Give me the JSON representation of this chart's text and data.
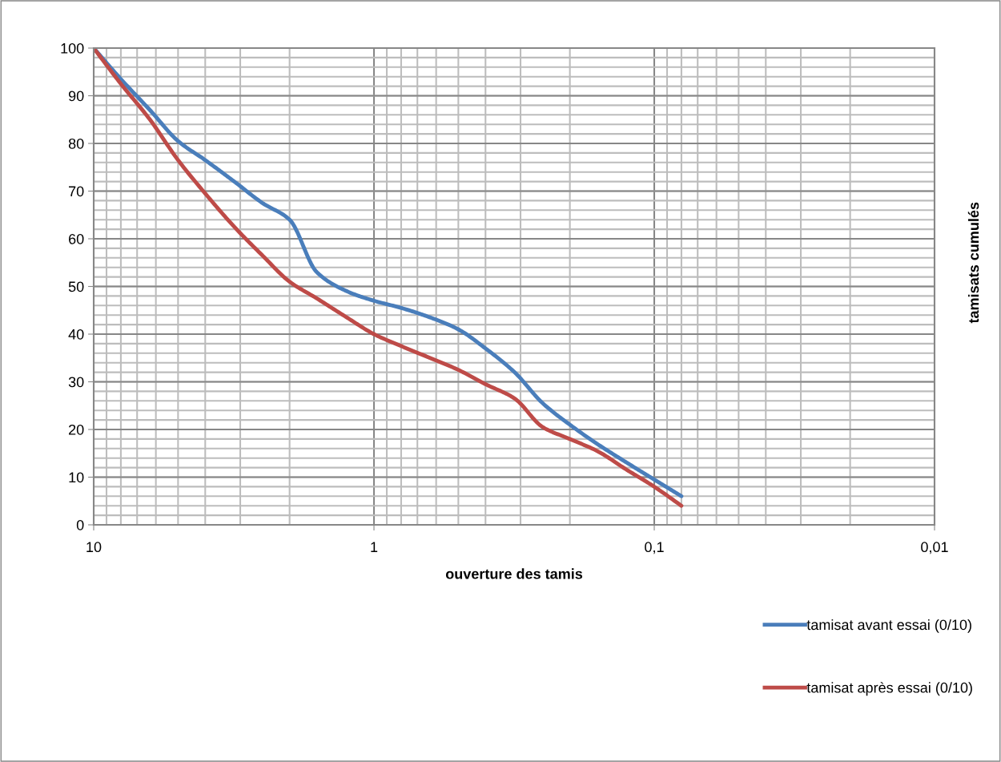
{
  "chart_data": {
    "type": "line",
    "xlabel": "ouverture des tamis",
    "ylabel": "tamisats cumulés",
    "log": "x",
    "xlim": [
      10,
      0.01
    ],
    "xticks": [
      10,
      1,
      {
        "value": 0.1,
        "label": "0,1"
      },
      {
        "value": 0.01,
        "label": "0,01"
      }
    ],
    "ylim": [
      0,
      100
    ],
    "yticks": [
      0,
      10,
      20,
      30,
      40,
      50,
      60,
      70,
      80,
      90,
      100
    ],
    "grid": true,
    "legend": "bottom right",
    "marker": "none",
    "line_style": "solid",
    "x": [
      10,
      8,
      6.3,
      5,
      4,
      3.15,
      2.5,
      2,
      1.6,
      1.25,
      1,
      0.8,
      0.63,
      0.5,
      0.4,
      0.315,
      0.25,
      0.2,
      0.16,
      0.125,
      0.1,
      0.08
    ],
    "series": [
      {
        "name": "tamisat avant essai (0/10)",
        "color": "#4a7ebb",
        "values": [
          100,
          93.5,
          87,
          80.5,
          76.5,
          72,
          67.5,
          64,
          53,
          49,
          47,
          45.5,
          43.5,
          41,
          37,
          32,
          25.5,
          21,
          17,
          13,
          9.5,
          6
        ]
      },
      {
        "name": "tamisat après essai (0/10)",
        "color": "#be4b48",
        "values": [
          100,
          92.5,
          85,
          76.5,
          69.5,
          62.5,
          56.5,
          51,
          47.5,
          43.5,
          40,
          37.5,
          35,
          32.5,
          29.5,
          26.5,
          20.5,
          18,
          15.5,
          11.5,
          8,
          4
        ]
      }
    ]
  }
}
